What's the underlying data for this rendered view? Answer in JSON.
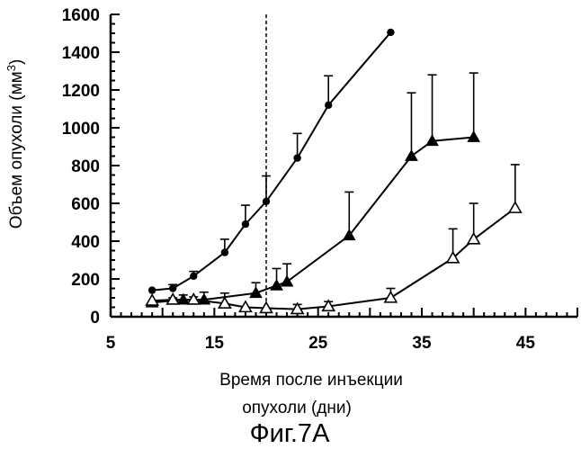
{
  "chart_data": {
    "type": "line",
    "title": "",
    "ylabel": "Объем опухоли (мм3)",
    "xlabel_lines": [
      "Время после инъекции",
      "опухоли (дни)"
    ],
    "xlim": [
      5,
      50
    ],
    "ylim": [
      0,
      1600
    ],
    "x_ticks": [
      5,
      15,
      25,
      35,
      45
    ],
    "y_ticks": [
      0,
      200,
      400,
      600,
      800,
      1000,
      1200,
      1400,
      1600
    ],
    "minor_x_step": 1,
    "minor_y_step": 50,
    "vertical_line": {
      "x": 20,
      "style": "dashed"
    },
    "series": [
      {
        "marker": "filled-circle",
        "points": [
          {
            "x": 9,
            "y": 140,
            "err": 0
          },
          {
            "x": 11,
            "y": 150,
            "err": 20
          },
          {
            "x": 13,
            "y": 215,
            "err": 25
          },
          {
            "x": 16,
            "y": 340,
            "err": 70
          },
          {
            "x": 18,
            "y": 490,
            "err": 100
          },
          {
            "x": 20,
            "y": 610,
            "err": 135
          },
          {
            "x": 23,
            "y": 840,
            "err": 130
          },
          {
            "x": 26,
            "y": 1120,
            "err": 155
          },
          {
            "x": 32,
            "y": 1505,
            "err": 0
          }
        ]
      },
      {
        "marker": "filled-triangle",
        "points": [
          {
            "x": 9,
            "y": 75,
            "err": 0
          },
          {
            "x": 12,
            "y": 90,
            "err": 25
          },
          {
            "x": 14,
            "y": 90,
            "err": 40
          },
          {
            "x": 19,
            "y": 125,
            "err": 55
          },
          {
            "x": 21,
            "y": 165,
            "err": 90
          },
          {
            "x": 22,
            "y": 185,
            "err": 95
          },
          {
            "x": 28,
            "y": 430,
            "err": 230
          },
          {
            "x": 34,
            "y": 850,
            "err": 335
          },
          {
            "x": 36,
            "y": 930,
            "err": 350
          },
          {
            "x": 40,
            "y": 950,
            "err": 340
          }
        ]
      },
      {
        "marker": "open-triangle",
        "points": [
          {
            "x": 9,
            "y": 85,
            "err": 0
          },
          {
            "x": 11,
            "y": 90,
            "err": 10
          },
          {
            "x": 13,
            "y": 90,
            "err": 15
          },
          {
            "x": 16,
            "y": 70,
            "err": 55
          },
          {
            "x": 18,
            "y": 50,
            "err": 0
          },
          {
            "x": 20,
            "y": 45,
            "err": 0
          },
          {
            "x": 23,
            "y": 40,
            "err": 25
          },
          {
            "x": 26,
            "y": 55,
            "err": 25
          },
          {
            "x": 32,
            "y": 100,
            "err": 50
          },
          {
            "x": 38,
            "y": 310,
            "err": 155
          },
          {
            "x": 40,
            "y": 410,
            "err": 190
          },
          {
            "x": 44,
            "y": 575,
            "err": 230
          }
        ]
      }
    ]
  },
  "caption": "Фиг.7А"
}
